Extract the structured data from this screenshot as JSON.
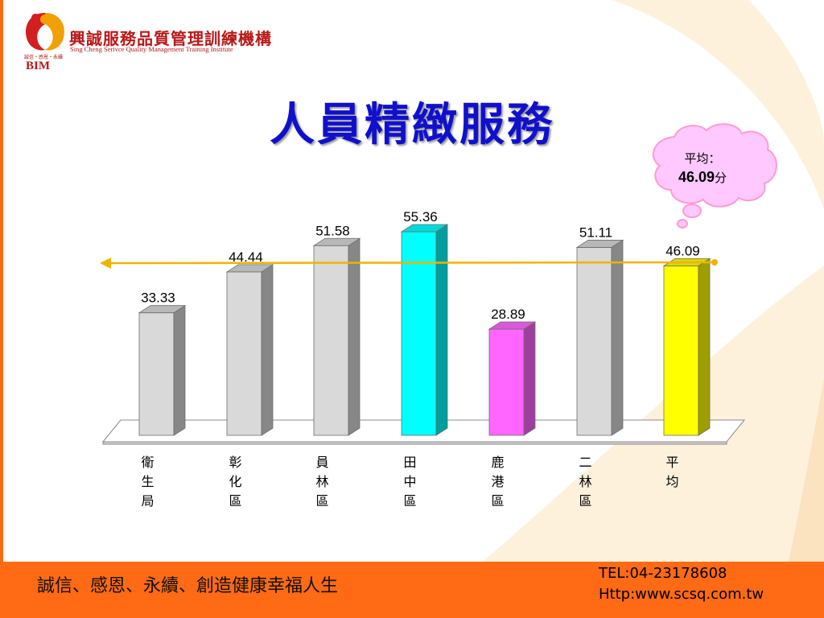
{
  "logo": {
    "name_cn": "興誠服務品質管理訓練機構",
    "name_en": "Sing Cheng Serivce Quality Management Training Institute",
    "small_text": "誠信・感恩・永續",
    "abbr": "BIM"
  },
  "slide_title": "人員精緻服務",
  "callout": {
    "label": "平均：",
    "value": "46.09",
    "unit": "分"
  },
  "chart_data": {
    "type": "bar",
    "title": "",
    "xlabel": "",
    "ylabel": "",
    "ylim": [
      0,
      60
    ],
    "grid": false,
    "categories": [
      "衛生局",
      "彰化區",
      "員林區",
      "田中區",
      "鹿港區",
      "二林區",
      "平均"
    ],
    "values": [
      33.33,
      44.44,
      51.58,
      55.36,
      28.89,
      51.11,
      46.09
    ],
    "value_labels": [
      "33.33",
      "44.44",
      "51.58",
      "55.36",
      "28.89",
      "51.11",
      "46.09"
    ],
    "bar_colors": [
      "#d9d9d9",
      "#d9d9d9",
      "#d9d9d9",
      "#00ffff",
      "#ff66ff",
      "#d9d9d9",
      "#ffff00"
    ],
    "average_line": {
      "value": 46.09,
      "color": "#f0b400"
    }
  },
  "footer": {
    "slogan": "誠信、感恩、永續、創造健康幸福人生",
    "tel": "TEL:04-23178608",
    "url": "Http:www.scsq.com.tw"
  }
}
